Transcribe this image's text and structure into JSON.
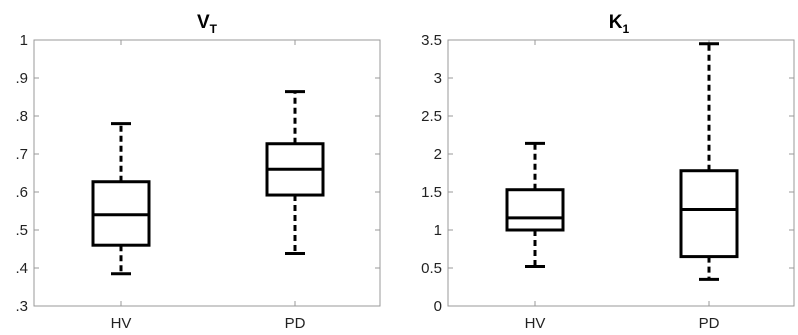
{
  "chart_data": [
    {
      "type": "box",
      "title": "V",
      "title_subscript": "T",
      "categories": [
        "HV",
        "PD"
      ],
      "ylim": [
        0.3,
        1.0
      ],
      "yticks": [
        0.3,
        0.4,
        0.5,
        0.6,
        0.7,
        0.8,
        0.9,
        1.0
      ],
      "ytick_labels": [
        ".3",
        ".4",
        ".5",
        ".6",
        ".7",
        ".8",
        ".9",
        "1"
      ],
      "boxes": [
        {
          "category": "HV",
          "min": 0.385,
          "q1": 0.46,
          "median": 0.54,
          "q3": 0.627,
          "max": 0.78
        },
        {
          "category": "PD",
          "min": 0.438,
          "q1": 0.592,
          "median": 0.66,
          "q3": 0.727,
          "max": 0.864
        }
      ],
      "grid": false
    },
    {
      "type": "box",
      "title": "K",
      "title_subscript": "1",
      "categories": [
        "HV",
        "PD"
      ],
      "ylim": [
        0,
        3.5
      ],
      "yticks": [
        0,
        0.5,
        1,
        1.5,
        2,
        2.5,
        3,
        3.5
      ],
      "ytick_labels": [
        "0",
        "0.5",
        "1",
        "1.5",
        "2",
        "2.5",
        "3",
        "3.5"
      ],
      "boxes": [
        {
          "category": "HV",
          "min": 0.52,
          "q1": 1.0,
          "median": 1.16,
          "q3": 1.53,
          "max": 2.14
        },
        {
          "category": "PD",
          "min": 0.35,
          "q1": 0.65,
          "median": 1.27,
          "q3": 1.78,
          "max": 3.45
        }
      ],
      "grid": false
    }
  ]
}
